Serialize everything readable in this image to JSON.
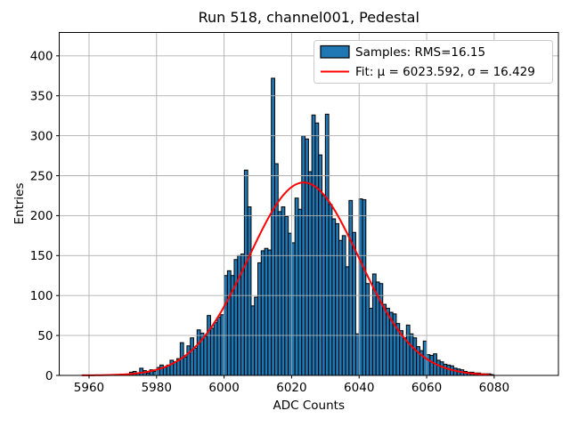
{
  "figure": {
    "kind": "matplotlib-style histogram figure",
    "background": "#ffffff"
  },
  "chart_data": {
    "type": "bar",
    "subtype": "histogram-with-gaussian-fit",
    "title": "Run 518, channel001, Pedestal",
    "xlabel": "ADC Counts",
    "ylabel": "Entries",
    "xlim": [
      5951.17,
      6099.03
    ],
    "ylim": [
      0,
      429.3
    ],
    "x_ticks": [
      5960,
      5980,
      6000,
      6020,
      6040,
      6060,
      6080
    ],
    "y_ticks": [
      0,
      50,
      100,
      150,
      200,
      250,
      300,
      350,
      400
    ],
    "grid": true,
    "grid_over_bars": true,
    "colors": {
      "bar_fill": "#1f77b4",
      "bar_edge": "#000000",
      "fit_line": "#ff0000",
      "grid": "#b0b0b0",
      "spine": "#000000",
      "legend_border": "#cccccc",
      "background": "#ffffff"
    },
    "histogram": {
      "bin_start": 5972,
      "bin_width": 1,
      "counts": [
        4,
        5,
        3,
        9,
        6,
        3,
        7,
        5,
        10,
        13,
        10,
        13,
        19,
        17,
        21,
        41,
        23,
        37,
        47,
        34,
        57,
        53,
        49,
        75,
        59,
        66,
        73,
        76,
        125,
        131,
        125,
        145,
        150,
        152,
        257,
        211,
        87,
        98,
        141,
        156,
        159,
        157,
        372,
        265,
        205,
        211,
        199,
        178,
        166,
        222,
        208,
        300,
        296,
        255,
        326,
        316,
        276,
        225,
        327,
        214,
        196,
        190,
        169,
        175,
        136,
        219,
        179,
        52,
        221,
        220,
        115,
        84,
        127,
        117,
        115,
        89,
        84,
        79,
        77,
        65,
        56,
        47,
        63,
        52,
        47,
        36,
        31,
        43,
        26,
        25,
        27,
        19,
        17,
        14,
        13,
        12,
        9,
        8,
        7,
        5,
        4,
        4,
        3,
        3,
        2,
        2,
        2,
        1
      ]
    },
    "fit": {
      "mu": 6023.592,
      "sigma": 16.429,
      "amplitude": 241.5,
      "x_range": [
        5958,
        6078.5
      ]
    },
    "legend": {
      "position": "upper right",
      "entries": [
        {
          "type": "patch",
          "label": "Samples: RMS=16.15",
          "color": "#1f77b4",
          "edge": "#000000"
        },
        {
          "type": "line",
          "label": "Fit: μ = 6023.592, σ = 16.429",
          "color": "#ff0000"
        }
      ]
    }
  }
}
